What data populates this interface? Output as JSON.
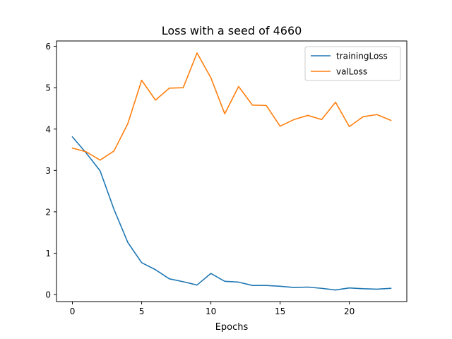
{
  "chart_data": {
    "type": "line",
    "title": "Loss with a seed of 4660",
    "xlabel": "Epochs",
    "ylabel": "",
    "xlim": [
      -1.15,
      24.15
    ],
    "ylim": [
      -0.17,
      6.13
    ],
    "xticks": [
      0,
      5,
      10,
      15,
      20
    ],
    "yticks": [
      0,
      1,
      2,
      3,
      4,
      5,
      6
    ],
    "grid": false,
    "legend_position": "top-right",
    "x": [
      0,
      1,
      2,
      3,
      4,
      5,
      6,
      7,
      8,
      9,
      10,
      11,
      12,
      13,
      14,
      15,
      16,
      17,
      18,
      19,
      20,
      21,
      22,
      23
    ],
    "series": [
      {
        "name": "trainingLoss",
        "color": "#1f77b4",
        "values": [
          3.81,
          3.42,
          2.99,
          2.06,
          1.26,
          0.77,
          0.6,
          0.38,
          0.31,
          0.23,
          0.51,
          0.32,
          0.3,
          0.22,
          0.22,
          0.2,
          0.17,
          0.18,
          0.15,
          0.11,
          0.16,
          0.14,
          0.13,
          0.15
        ]
      },
      {
        "name": "valLoss",
        "color": "#ff7f0e",
        "values": [
          3.54,
          3.45,
          3.25,
          3.47,
          4.13,
          5.18,
          4.7,
          4.99,
          5.0,
          5.84,
          5.24,
          4.37,
          5.03,
          4.58,
          4.57,
          4.07,
          4.23,
          4.33,
          4.23,
          4.65,
          4.06,
          4.3,
          4.35,
          4.21
        ]
      }
    ]
  }
}
